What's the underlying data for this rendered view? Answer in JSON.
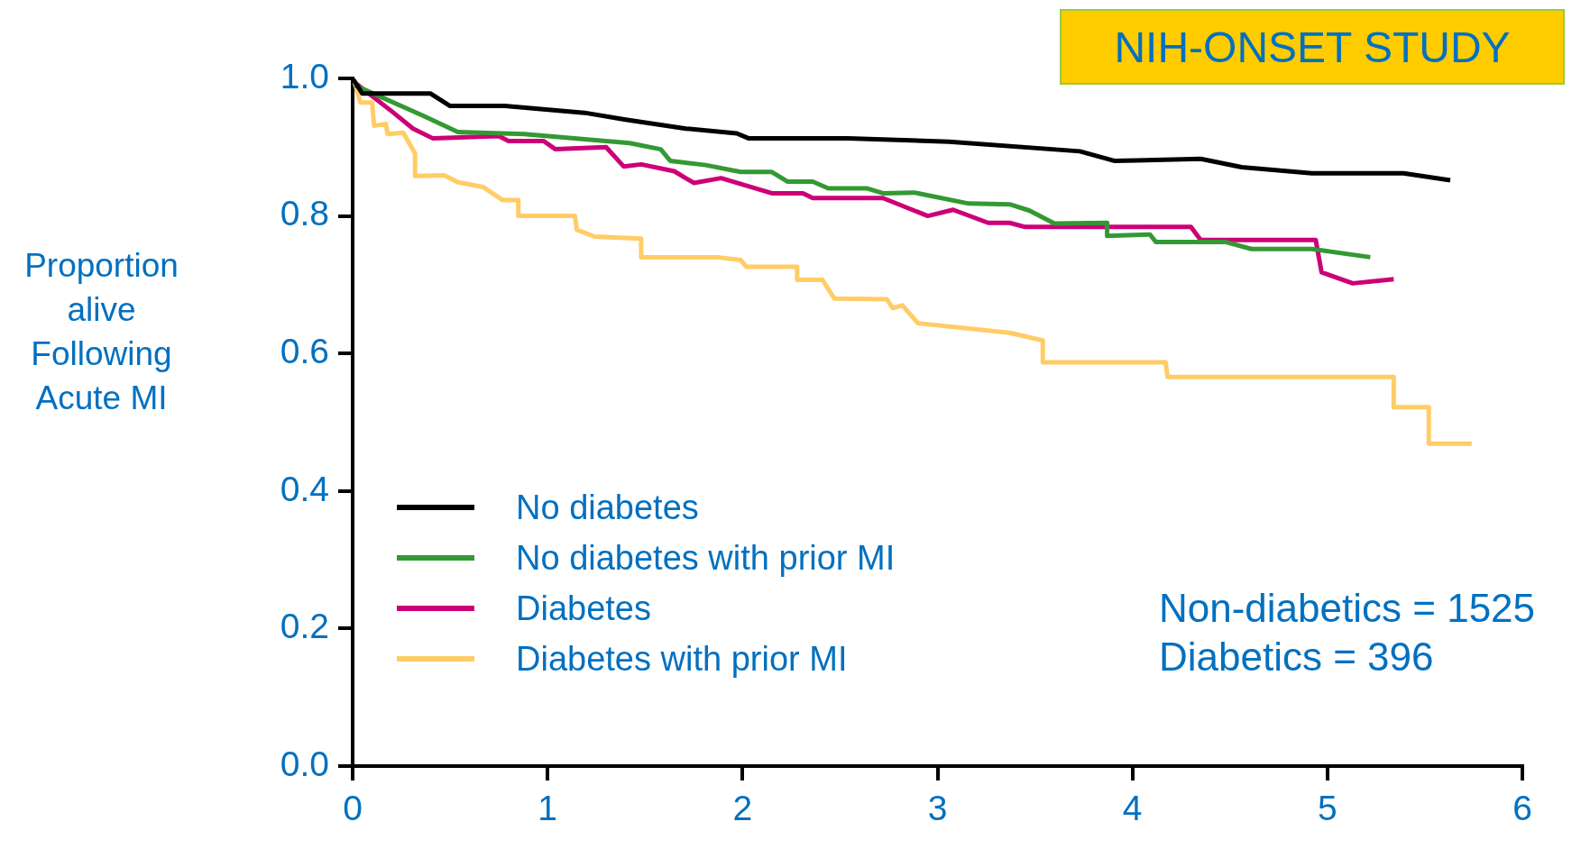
{
  "chart_data": {
    "type": "line",
    "ylabel": "Proportion alive Following Acute MI",
    "annotations": [
      "NIH-ONSET STUDY",
      "Non-diabetics = 1525",
      "Diabetics = 396"
    ],
    "xlim": [
      0,
      6
    ],
    "xticks": [
      0,
      1,
      2,
      3,
      4,
      5,
      6
    ],
    "ylim": [
      0,
      1
    ],
    "yticks": [
      {
        "value": 0,
        "label": "0.0"
      },
      {
        "value": 0.2,
        "label": "0.2"
      },
      {
        "value": 0.4,
        "label": "0.4"
      },
      {
        "value": 0.6,
        "label": "0.6"
      },
      {
        "value": 0.8,
        "label": "0.8"
      },
      {
        "value": 1,
        "label": "1.0"
      }
    ],
    "grid": false,
    "legend": "bottom left",
    "marker": "none",
    "line_style": "solid",
    "series": [
      {
        "name": "No diabetes",
        "color": "#000000",
        "x": [
          0,
          0.05,
          0.4,
          0.5,
          0.78,
          1.19,
          1.4,
          1.71,
          1.97,
          2.03,
          2.54,
          3.06,
          3.73,
          3.91,
          4.35,
          4.56,
          4.92,
          5.39,
          5.63
        ],
        "values": [
          1.0,
          0.978,
          0.978,
          0.96,
          0.96,
          0.95,
          0.94,
          0.927,
          0.92,
          0.913,
          0.913,
          0.908,
          0.894,
          0.88,
          0.883,
          0.871,
          0.862,
          0.862,
          0.852
        ]
      },
      {
        "name": "No diabetes with prior MI",
        "color": "#339933",
        "x": [
          0.01,
          0.36,
          0.54,
          0.88,
          1.42,
          1.58,
          1.63,
          1.81,
          1.99,
          2.15,
          2.23,
          2.36,
          2.44,
          2.64,
          2.72,
          2.88,
          3.16,
          3.37,
          3.47,
          3.6,
          3.87,
          3.87,
          4.09,
          4.12,
          4.48,
          4.61,
          4.92,
          5.22
        ],
        "values": [
          0.99,
          0.946,
          0.922,
          0.919,
          0.906,
          0.897,
          0.88,
          0.874,
          0.864,
          0.864,
          0.85,
          0.85,
          0.84,
          0.84,
          0.833,
          0.834,
          0.818,
          0.817,
          0.808,
          0.789,
          0.79,
          0.771,
          0.773,
          0.762,
          0.762,
          0.752,
          0.752,
          0.74
        ]
      },
      {
        "name": "Diabetes",
        "color": "#cc0077",
        "x": [
          0.01,
          0.21,
          0.31,
          0.41,
          0.75,
          0.8,
          0.98,
          1.04,
          1.3,
          1.39,
          1.48,
          1.65,
          1.75,
          1.89,
          2.15,
          2.31,
          2.36,
          2.72,
          2.95,
          3.08,
          3.26,
          3.37,
          3.45,
          4.3,
          4.35,
          4.94,
          4.97,
          5.13,
          5.34
        ],
        "values": [
          0.994,
          0.95,
          0.927,
          0.913,
          0.916,
          0.909,
          0.909,
          0.897,
          0.9,
          0.872,
          0.875,
          0.865,
          0.848,
          0.855,
          0.833,
          0.833,
          0.826,
          0.826,
          0.8,
          0.809,
          0.79,
          0.79,
          0.784,
          0.784,
          0.765,
          0.765,
          0.718,
          0.702,
          0.708
        ]
      },
      {
        "name": "Diabetes with prior MI",
        "color": "#ffcc66",
        "x": [
          0.01,
          0.04,
          0.1,
          0.11,
          0.17,
          0.18,
          0.26,
          0.32,
          0.32,
          0.47,
          0.54,
          0.67,
          0.77,
          0.85,
          0.85,
          1.14,
          1.15,
          1.24,
          1.48,
          1.48,
          1.87,
          1.99,
          2.02,
          2.28,
          2.28,
          2.41,
          2.47,
          2.74,
          2.77,
          2.82,
          2.9,
          3.37,
          3.54,
          3.54,
          4.17,
          4.18,
          5.34,
          5.34,
          5.52,
          5.52,
          5.74
        ],
        "values": [
          0.994,
          0.965,
          0.965,
          0.931,
          0.934,
          0.919,
          0.921,
          0.891,
          0.858,
          0.859,
          0.849,
          0.842,
          0.823,
          0.823,
          0.8,
          0.8,
          0.78,
          0.77,
          0.767,
          0.74,
          0.74,
          0.736,
          0.726,
          0.726,
          0.707,
          0.707,
          0.68,
          0.679,
          0.666,
          0.67,
          0.644,
          0.63,
          0.619,
          0.587,
          0.587,
          0.566,
          0.566,
          0.522,
          0.522,
          0.469,
          0.469
        ]
      }
    ]
  }
}
